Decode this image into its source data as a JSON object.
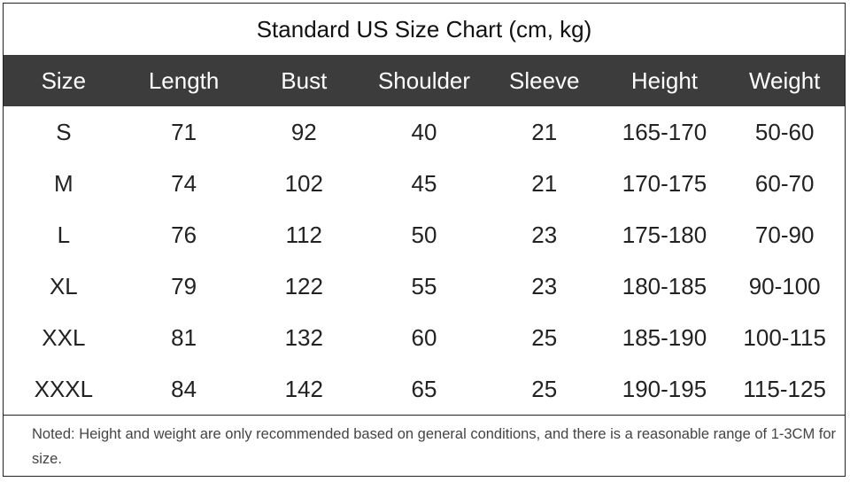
{
  "table": {
    "title": "Standard US Size Chart (cm, kg)",
    "header": [
      "Size",
      "Length",
      "Bust",
      "Shoulder",
      "Sleeve",
      "Height",
      "Weight"
    ],
    "rows": [
      [
        "S",
        "71",
        "92",
        "40",
        "21",
        "165-170",
        "50-60"
      ],
      [
        "M",
        "74",
        "102",
        "45",
        "21",
        "170-175",
        "60-70"
      ],
      [
        "L",
        "76",
        "112",
        "50",
        "23",
        "175-180",
        "70-90"
      ],
      [
        "XL",
        "79",
        "122",
        "55",
        "23",
        "180-185",
        "90-100"
      ],
      [
        "XXL",
        "81",
        "132",
        "60",
        "25",
        "185-190",
        "100-115"
      ],
      [
        "XXXL",
        "84",
        "142",
        "65",
        "25",
        "190-195",
        "115-125"
      ]
    ],
    "note": "Noted: Height and weight are only recommended based on general conditions, and there is a reasonable range of 1-3CM for size."
  }
}
